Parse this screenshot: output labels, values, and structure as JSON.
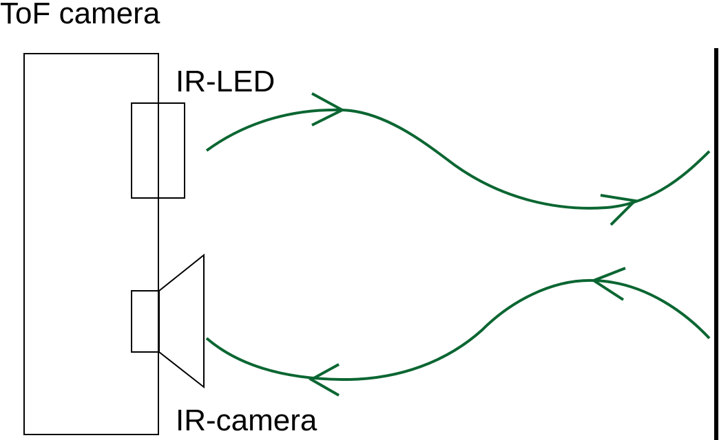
{
  "labels": {
    "title": "ToF camera",
    "emitter": "IR-LED",
    "receiver": "IR-camera"
  },
  "colors": {
    "outline": "#000000",
    "light_path": "#0b6632",
    "background": "#ffffff"
  }
}
